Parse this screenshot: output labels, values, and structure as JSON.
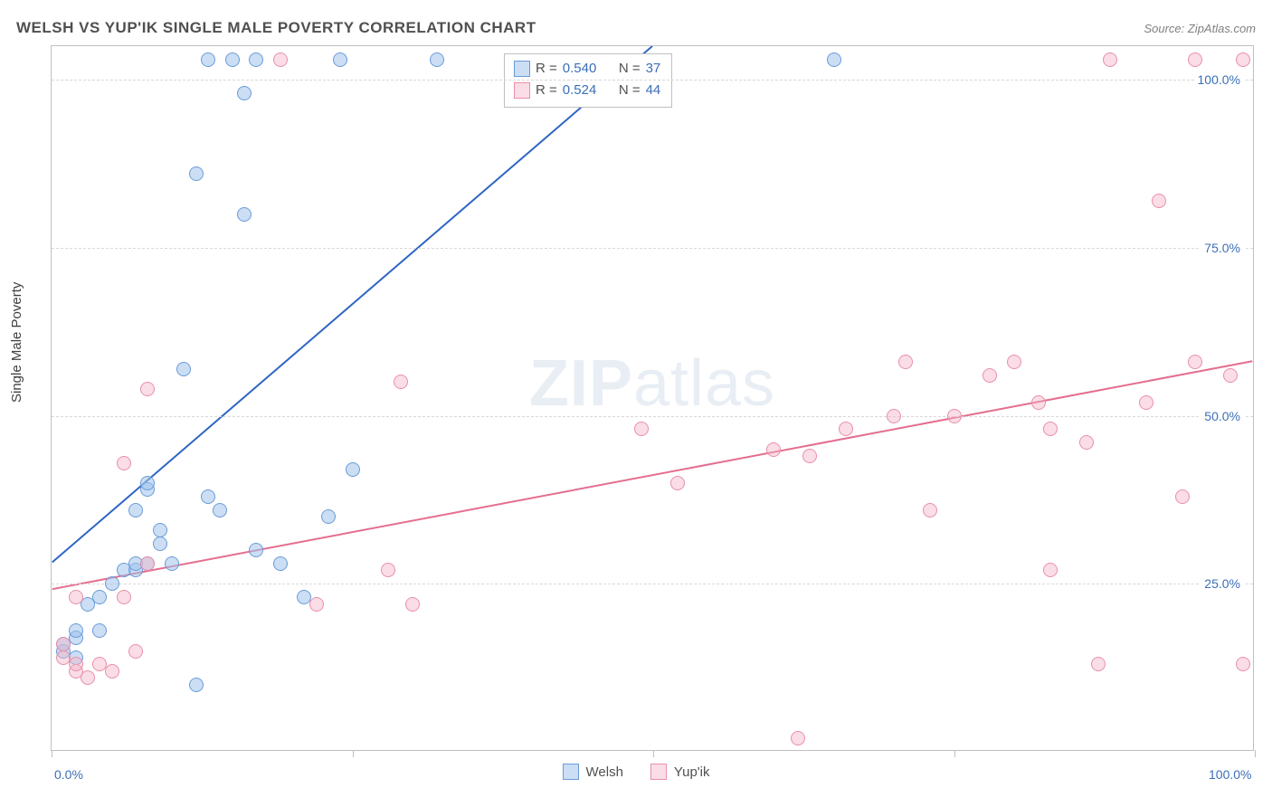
{
  "title": "WELSH VS YUP'IK SINGLE MALE POVERTY CORRELATION CHART",
  "source": "Source: ZipAtlas.com",
  "y_axis_label": "Single Male Poverty",
  "watermark": {
    "bold": "ZIP",
    "rest": "atlas"
  },
  "chart": {
    "type": "scatter",
    "xlim": [
      0,
      100
    ],
    "ylim": [
      0,
      105
    ],
    "x_ticks": [
      0,
      25,
      50,
      75,
      100
    ],
    "x_tick_labels": {
      "0": "0.0%",
      "100": "100.0%"
    },
    "y_ticks": [
      25,
      50,
      75,
      100
    ],
    "y_tick_labels": [
      "25.0%",
      "50.0%",
      "75.0%",
      "100.0%"
    ],
    "grid_color": "#d8d8d8",
    "border_color": "#bfbfbf",
    "background_color": "#ffffff",
    "point_radius": 8,
    "point_border_width": 1.5,
    "line_width": 2,
    "series": [
      {
        "name": "Welsh",
        "fill_color": "rgba(160,195,235,0.55)",
        "stroke_color": "#6a9bd8",
        "line_color": "#2d66c4",
        "r": "0.540",
        "n": "37",
        "trend": {
          "x1": 0,
          "y1": 28,
          "x2": 50,
          "y2": 105
        },
        "points": [
          [
            1,
            15
          ],
          [
            1,
            16
          ],
          [
            2,
            14
          ],
          [
            2,
            17
          ],
          [
            2,
            18
          ],
          [
            3,
            22
          ],
          [
            4,
            18
          ],
          [
            4,
            23
          ],
          [
            5,
            25
          ],
          [
            6,
            27
          ],
          [
            7,
            27
          ],
          [
            7,
            28
          ],
          [
            7,
            36
          ],
          [
            8,
            28
          ],
          [
            8,
            39
          ],
          [
            8,
            40
          ],
          [
            9,
            31
          ],
          [
            9,
            33
          ],
          [
            10,
            28
          ],
          [
            11,
            57
          ],
          [
            12,
            10
          ],
          [
            12,
            86
          ],
          [
            13,
            38
          ],
          [
            13,
            103
          ],
          [
            14,
            36
          ],
          [
            15,
            103
          ],
          [
            16,
            80
          ],
          [
            16,
            98
          ],
          [
            17,
            103
          ],
          [
            17,
            30
          ],
          [
            19,
            28
          ],
          [
            21,
            23
          ],
          [
            23,
            35
          ],
          [
            24,
            103
          ],
          [
            25,
            42
          ],
          [
            32,
            103
          ],
          [
            65,
            103
          ]
        ]
      },
      {
        "name": "Yup'ik",
        "fill_color": "rgba(245,180,200,0.45)",
        "stroke_color": "#e98fa8",
        "line_color": "#e46e8f",
        "r": "0.524",
        "n": "44",
        "trend": {
          "x1": 0,
          "y1": 24,
          "x2": 100,
          "y2": 58
        },
        "points": [
          [
            1,
            14
          ],
          [
            1,
            16
          ],
          [
            2,
            12
          ],
          [
            2,
            13
          ],
          [
            2,
            23
          ],
          [
            3,
            11
          ],
          [
            4,
            13
          ],
          [
            5,
            12
          ],
          [
            6,
            23
          ],
          [
            6,
            43
          ],
          [
            7,
            15
          ],
          [
            8,
            54
          ],
          [
            8,
            28
          ],
          [
            19,
            103
          ],
          [
            22,
            22
          ],
          [
            28,
            27
          ],
          [
            29,
            55
          ],
          [
            30,
            22
          ],
          [
            49,
            48
          ],
          [
            52,
            40
          ],
          [
            60,
            45
          ],
          [
            62,
            2
          ],
          [
            63,
            44
          ],
          [
            66,
            48
          ],
          [
            70,
            50
          ],
          [
            71,
            58
          ],
          [
            73,
            36
          ],
          [
            75,
            50
          ],
          [
            78,
            56
          ],
          [
            80,
            58
          ],
          [
            82,
            52
          ],
          [
            83,
            48
          ],
          [
            83,
            27
          ],
          [
            86,
            46
          ],
          [
            87,
            13
          ],
          [
            88,
            103
          ],
          [
            91,
            52
          ],
          [
            92,
            82
          ],
          [
            94,
            38
          ],
          [
            95,
            103
          ],
          [
            95,
            58
          ],
          [
            98,
            56
          ],
          [
            99,
            13
          ],
          [
            99,
            103
          ]
        ]
      }
    ]
  },
  "legend_top": {
    "r_label": "R =",
    "n_label": "N ="
  },
  "legend_bottom": {
    "items": [
      "Welsh",
      "Yup'ik"
    ]
  }
}
